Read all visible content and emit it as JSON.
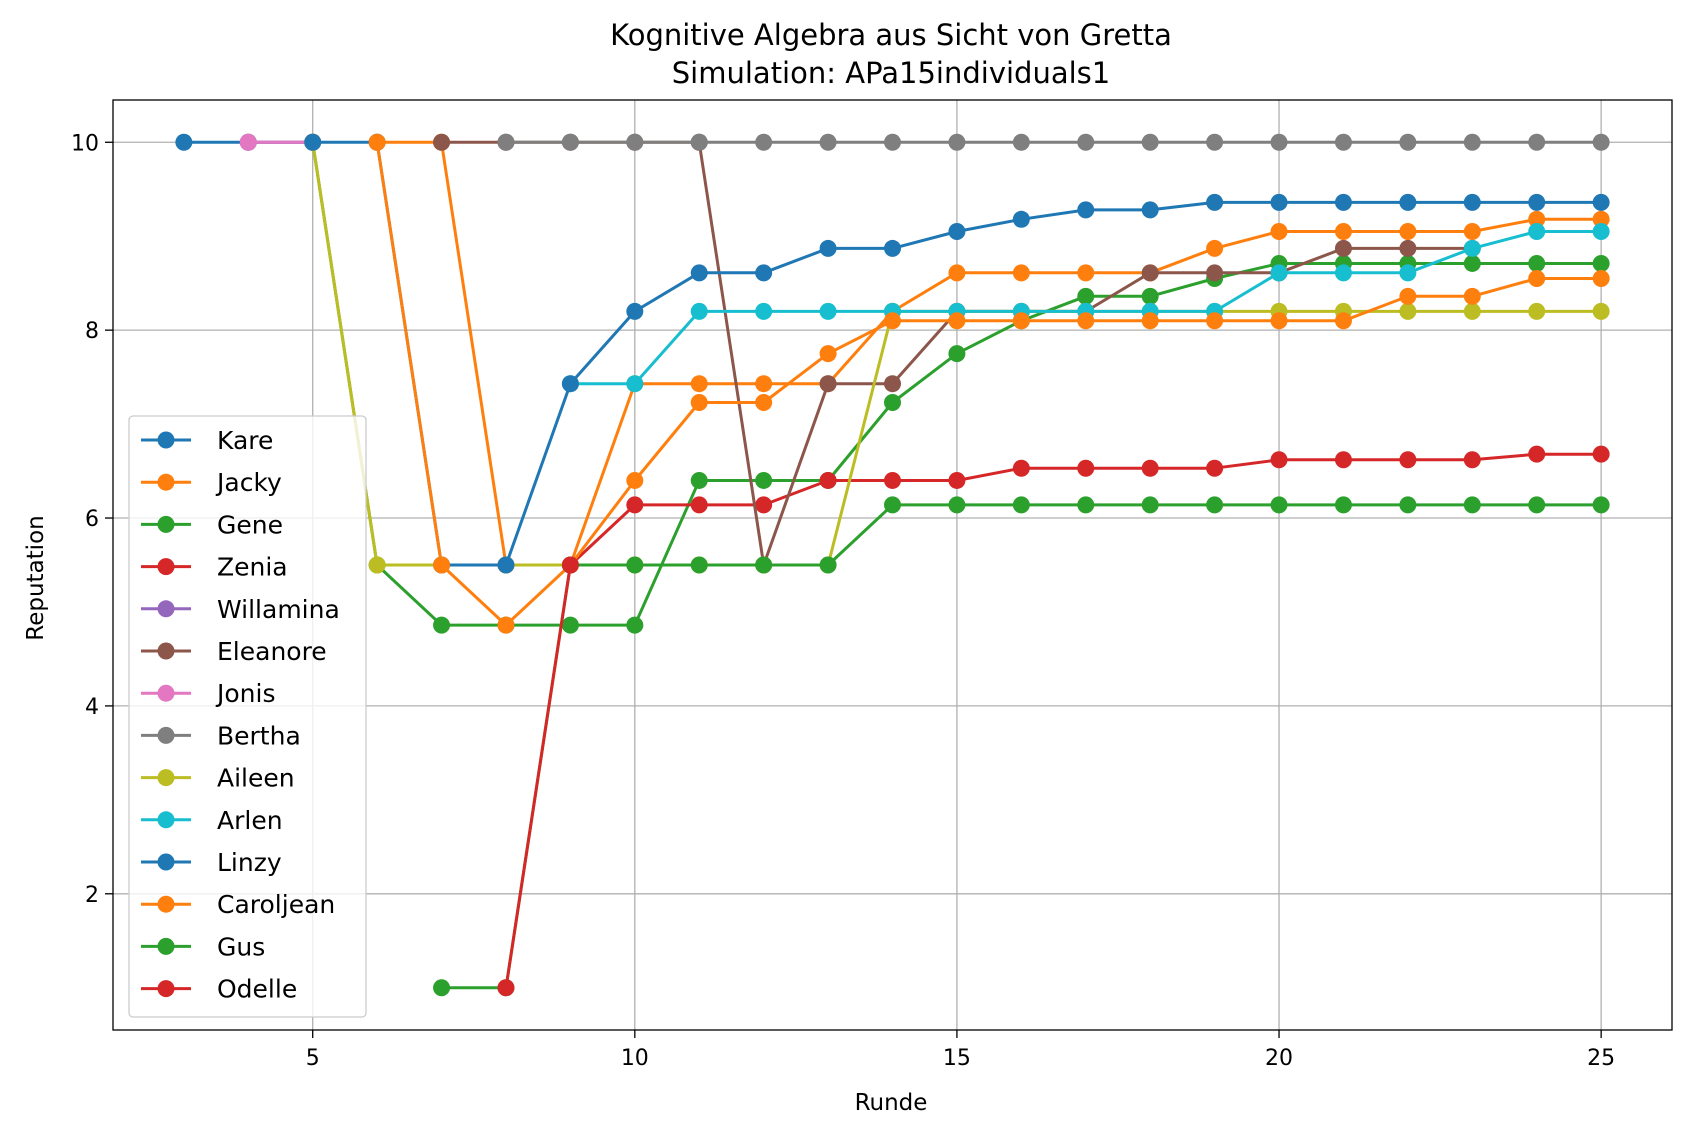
{
  "chart_data": {
    "type": "line",
    "title": "Kognitive Algebra aus Sicht von Gretta",
    "subtitle": "Simulation: APa15individuals1",
    "xlabel": "Runde",
    "ylabel": "Reputation",
    "xlim": [
      1.9,
      26.1
    ],
    "ylim": [
      0.55,
      10.45
    ],
    "xticks": [
      5,
      10,
      15,
      20,
      25
    ],
    "yticks": [
      2,
      4,
      6,
      8,
      10
    ],
    "grid": true,
    "legend_position": "lower-left",
    "series": [
      {
        "name": "Kare",
        "color": "#1f77b4",
        "x": [
          3,
          4,
          5
        ],
        "y": [
          10,
          10,
          10
        ]
      },
      {
        "name": "Jacky",
        "color": "#ff7f0e",
        "x": [
          6,
          7,
          8,
          9,
          10,
          11,
          12,
          13,
          14,
          15,
          16,
          17,
          18,
          19,
          20,
          21,
          22,
          23,
          24,
          25
        ],
        "y": [
          10,
          10,
          5.5,
          5.5,
          7.43,
          7.43,
          7.43,
          7.43,
          8.2,
          8.61,
          8.61,
          8.61,
          8.61,
          8.87,
          9.05,
          9.05,
          9.05,
          9.05,
          9.18,
          9.18
        ]
      },
      {
        "name": "Gene",
        "color": "#2ca02c",
        "x": [
          5,
          6,
          7,
          8,
          9,
          10,
          11,
          12,
          13,
          14,
          15,
          16,
          17,
          18,
          19,
          20,
          21,
          22,
          23,
          24,
          25
        ],
        "y": [
          10,
          5.5,
          4.86,
          4.86,
          4.86,
          4.86,
          6.4,
          6.4,
          6.4,
          7.23,
          7.75,
          8.1,
          8.36,
          8.36,
          8.55,
          8.71,
          8.71,
          8.71,
          8.71,
          8.71,
          8.71
        ]
      },
      {
        "name": "Zenia",
        "color": "#d62728",
        "x": [
          9,
          10,
          11,
          12,
          13,
          14,
          15,
          16,
          17,
          18,
          19,
          20,
          21,
          22,
          23,
          24,
          25
        ],
        "y": [
          5.5,
          6.14,
          6.14,
          6.14,
          6.4,
          6.4,
          6.4,
          6.53,
          6.53,
          6.53,
          6.53,
          6.62,
          6.62,
          6.62,
          6.62,
          6.68,
          6.68
        ]
      },
      {
        "name": "Willamina",
        "color": "#9467bd",
        "x": [
          4,
          5
        ],
        "y": [
          10,
          10
        ]
      },
      {
        "name": "Eleanore",
        "color": "#8c564b",
        "x": [
          7,
          8,
          9,
          10,
          11,
          12,
          13,
          14,
          15,
          16,
          17,
          18,
          19,
          20,
          21,
          22,
          23
        ],
        "y": [
          10,
          10,
          10,
          10,
          10,
          5.5,
          7.43,
          7.43,
          8.2,
          8.2,
          8.2,
          8.61,
          8.61,
          8.61,
          8.87,
          8.87,
          8.87
        ]
      },
      {
        "name": "Jonis",
        "color": "#e377c2",
        "x": [
          4,
          5
        ],
        "y": [
          10,
          10
        ]
      },
      {
        "name": "Bertha",
        "color": "#7f7f7f",
        "x": [
          8,
          9,
          10,
          11,
          12,
          13,
          14,
          15,
          16,
          17,
          18,
          19,
          20,
          21,
          22,
          23,
          24,
          25
        ],
        "y": [
          10,
          10,
          10,
          10,
          10,
          10,
          10,
          10,
          10,
          10,
          10,
          10,
          10,
          10,
          10,
          10,
          10,
          10
        ]
      },
      {
        "name": "Aileen",
        "color": "#bcbd22",
        "x": [
          5,
          6,
          7,
          8,
          9,
          10,
          11,
          12,
          13,
          14,
          15,
          16,
          17,
          18,
          19,
          20,
          21,
          22,
          23,
          24,
          25
        ],
        "y": [
          10,
          5.5,
          5.5,
          5.5,
          5.5,
          5.5,
          5.5,
          5.5,
          5.5,
          8.2,
          8.2,
          8.2,
          8.2,
          8.2,
          8.2,
          8.2,
          8.2,
          8.2,
          8.2,
          8.2,
          8.2
        ]
      },
      {
        "name": "Arlen",
        "color": "#17becf",
        "x": [
          9,
          10,
          11,
          12,
          13,
          14,
          15,
          16,
          17,
          18,
          19,
          20,
          21,
          22,
          23,
          24,
          25
        ],
        "y": [
          7.43,
          7.43,
          8.2,
          8.2,
          8.2,
          8.2,
          8.2,
          8.2,
          8.2,
          8.2,
          8.2,
          8.61,
          8.61,
          8.61,
          8.87,
          9.05,
          9.05
        ]
      },
      {
        "name": "Linzy",
        "color": "#1f77b4",
        "x": [
          5,
          6,
          7,
          8,
          9,
          10,
          11,
          12,
          13,
          14,
          15,
          16,
          17,
          18,
          19,
          20,
          21,
          22,
          23,
          24,
          25
        ],
        "y": [
          10,
          10,
          5.5,
          5.5,
          7.43,
          8.2,
          8.61,
          8.61,
          8.87,
          8.87,
          9.05,
          9.18,
          9.28,
          9.28,
          9.36,
          9.36,
          9.36,
          9.36,
          9.36,
          9.36,
          9.36
        ]
      },
      {
        "name": "Caroljean",
        "color": "#ff7f0e",
        "x": [
          6,
          7,
          8,
          9,
          10,
          11,
          12,
          13,
          14,
          15,
          16,
          17,
          18,
          19,
          20,
          21,
          22,
          23,
          24,
          25
        ],
        "y": [
          10,
          5.5,
          4.86,
          5.5,
          6.4,
          7.23,
          7.23,
          7.75,
          8.1,
          8.1,
          8.1,
          8.1,
          8.1,
          8.1,
          8.1,
          8.1,
          8.36,
          8.36,
          8.55,
          8.55
        ]
      },
      {
        "name": "Gus",
        "color": "#2ca02c",
        "x": [
          7,
          8,
          9,
          10,
          11,
          12,
          13,
          14,
          15,
          16,
          17,
          18,
          19,
          20,
          21,
          22,
          23,
          24,
          25
        ],
        "y": [
          1,
          1,
          5.5,
          5.5,
          5.5,
          5.5,
          5.5,
          6.14,
          6.14,
          6.14,
          6.14,
          6.14,
          6.14,
          6.14,
          6.14,
          6.14,
          6.14,
          6.14,
          6.14
        ]
      },
      {
        "name": "Odelle",
        "color": "#d62728",
        "x": [
          8,
          9
        ],
        "y": [
          1,
          5.5
        ]
      }
    ]
  }
}
